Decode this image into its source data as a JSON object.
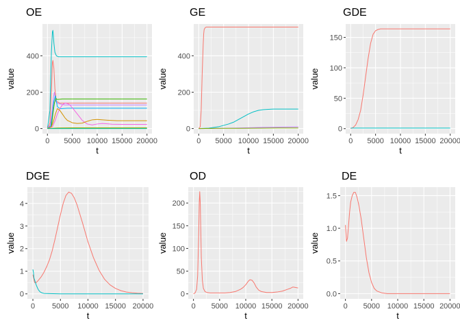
{
  "chart_data": [
    {
      "type": "line",
      "title": "OE",
      "xlabel": "t",
      "ylabel": "value",
      "xlim": [
        -1000,
        21000
      ],
      "ylim": [
        -28,
        575
      ],
      "xticks": [
        0,
        5000,
        10000,
        15000,
        20000
      ],
      "yticks": [
        0,
        200,
        400
      ],
      "xtick_labels": [
        "0",
        "5000",
        "10000",
        "15000",
        "20000"
      ],
      "ytick_labels": [
        "0",
        "200",
        "400"
      ],
      "series": [
        {
          "color": "#00BFC4",
          "x": [
            0,
            500,
            800,
            1000,
            1100,
            1200,
            1300,
            1500,
            1800,
            2200,
            3000,
            5000,
            20000
          ],
          "y": [
            0,
            100,
            420,
            530,
            540,
            510,
            470,
            420,
            400,
            395,
            395,
            395,
            395
          ]
        },
        {
          "color": "#F8766D",
          "x": [
            0,
            500,
            800,
            1000,
            1100,
            1300,
            1500,
            1800,
            2500,
            20000
          ],
          "y": [
            0,
            30,
            200,
            360,
            375,
            330,
            220,
            150,
            140,
            140
          ]
        },
        {
          "color": "#C77CFF",
          "x": [
            0,
            600,
            900,
            1200,
            1400,
            1700,
            2000,
            2500,
            3500,
            20000
          ],
          "y": [
            0,
            20,
            90,
            170,
            200,
            150,
            140,
            135,
            130,
            130
          ]
        },
        {
          "color": "#00B0F6",
          "x": [
            0,
            700,
            1000,
            1300,
            1600,
            2000,
            2500,
            3000,
            4000,
            5000,
            20000
          ],
          "y": [
            0,
            15,
            80,
            150,
            180,
            120,
            110,
            110,
            112,
            112,
            112
          ]
        },
        {
          "color": "#39B600",
          "x": [
            0,
            800,
            1100,
            1400,
            1700,
            2000,
            3000,
            20000
          ],
          "y": [
            0,
            10,
            80,
            140,
            165,
            160,
            163,
            163
          ]
        },
        {
          "color": "#F564E3",
          "x": [
            0,
            1000,
            1500,
            2000,
            2500,
            3000,
            3500,
            4000,
            4500,
            5000,
            6000,
            7000,
            8000,
            9000,
            10000,
            11000,
            12000,
            13000,
            15000,
            20000
          ],
          "y": [
            0,
            10,
            40,
            80,
            110,
            130,
            140,
            138,
            130,
            115,
            80,
            45,
            25,
            20,
            25,
            28,
            26,
            24,
            23,
            23
          ]
        },
        {
          "color": "#D39200",
          "x": [
            0,
            800,
            1200,
            1600,
            2000,
            2500,
            3000,
            3500,
            4000,
            5000,
            6000,
            7000,
            8000,
            9000,
            10000,
            12000,
            14000,
            16000,
            20000
          ],
          "y": [
            0,
            10,
            40,
            80,
            110,
            100,
            80,
            60,
            45,
            32,
            28,
            30,
            40,
            48,
            50,
            46,
            43,
            43,
            43
          ]
        },
        {
          "color": "#93AA00",
          "x": [
            0,
            2000,
            5000,
            20000
          ],
          "y": [
            0,
            3,
            4,
            4
          ]
        },
        {
          "color": "#00C19F",
          "x": [
            0,
            20000
          ],
          "y": [
            0,
            0
          ]
        }
      ]
    },
    {
      "type": "line",
      "title": "GE",
      "xlabel": "t",
      "ylabel": "value",
      "xlim": [
        -1000,
        21000
      ],
      "ylim": [
        -28,
        575
      ],
      "xticks": [
        0,
        5000,
        10000,
        15000,
        20000
      ],
      "yticks": [
        0,
        200,
        400
      ],
      "xtick_labels": [
        "0",
        "5000",
        "10000",
        "15000",
        "20000"
      ],
      "ytick_labels": [
        "0",
        "200",
        "400"
      ],
      "series": [
        {
          "color": "#F8766D",
          "x": [
            0,
            300,
            500,
            700,
            900,
            1000,
            1100,
            1300,
            1500,
            2000,
            20000
          ],
          "y": [
            0,
            10,
            100,
            300,
            460,
            520,
            545,
            555,
            558,
            558,
            558
          ]
        },
        {
          "color": "#00BFC4",
          "x": [
            0,
            2000,
            4000,
            6000,
            7000,
            8000,
            9000,
            10000,
            11000,
            12000,
            13000,
            14000,
            15000,
            16000,
            18000,
            20000
          ],
          "y": [
            0,
            2,
            10,
            25,
            35,
            50,
            65,
            80,
            92,
            100,
            104,
            106,
            107,
            107,
            107,
            107
          ]
        },
        {
          "color": "#C77CFF",
          "x": [
            0,
            4000,
            8000,
            12000,
            16000,
            20000
          ],
          "y": [
            0,
            1,
            3,
            6,
            8,
            9
          ]
        },
        {
          "color": "#7CAE00",
          "x": [
            0,
            4000,
            8000,
            12000,
            16000,
            20000
          ],
          "y": [
            0,
            1,
            1,
            2,
            3,
            3
          ]
        }
      ]
    },
    {
      "type": "line",
      "title": "GDE",
      "xlabel": "t",
      "ylabel": "value",
      "xlim": [
        -1000,
        21000
      ],
      "ylim": [
        -8.2,
        172
      ],
      "xticks": [
        0,
        5000,
        10000,
        15000,
        20000
      ],
      "yticks": [
        0,
        50,
        100,
        150
      ],
      "xtick_labels": [
        "0",
        "5000",
        "10000",
        "15000",
        "20000"
      ],
      "ytick_labels": [
        "0",
        "50",
        "100",
        "150"
      ],
      "series": [
        {
          "color": "#F8766D",
          "x": [
            0,
            500,
            1000,
            1500,
            2000,
            2500,
            3000,
            3500,
            4000,
            4500,
            5000,
            5500,
            6000,
            20000
          ],
          "y": [
            0,
            2,
            6,
            15,
            30,
            55,
            85,
            115,
            140,
            155,
            161,
            163,
            164,
            164
          ]
        },
        {
          "color": "#00BFC4",
          "x": [
            0,
            20000
          ],
          "y": [
            1,
            1
          ]
        }
      ]
    },
    {
      "type": "line",
      "title": "DGE",
      "xlabel": "t",
      "ylabel": "value",
      "xlim": [
        -1000,
        21000
      ],
      "ylim": [
        -0.22,
        4.72
      ],
      "xticks": [
        0,
        5000,
        10000,
        15000,
        20000
      ],
      "yticks": [
        0,
        1,
        2,
        3,
        4
      ],
      "xtick_labels": [
        "0",
        "5000",
        "10000",
        "15000",
        "20000"
      ],
      "ytick_labels": [
        "0",
        "1",
        "2",
        "3",
        "4"
      ],
      "series": [
        {
          "color": "#F8766D",
          "x": [
            0,
            300,
            600,
            1000,
            1500,
            2000,
            2500,
            3000,
            3500,
            4000,
            4500,
            5000,
            5500,
            6000,
            6500,
            7000,
            7500,
            8000,
            8500,
            9000,
            10000,
            11000,
            12000,
            13000,
            14000,
            15000,
            16000,
            17000,
            18000,
            19000,
            20000
          ],
          "y": [
            0.85,
            0.5,
            0.5,
            0.6,
            0.75,
            0.95,
            1.2,
            1.5,
            1.9,
            2.4,
            2.95,
            3.5,
            4.0,
            4.35,
            4.5,
            4.45,
            4.25,
            3.95,
            3.55,
            3.15,
            2.3,
            1.6,
            1.05,
            0.65,
            0.4,
            0.24,
            0.14,
            0.08,
            0.05,
            0.03,
            0.02
          ]
        },
        {
          "color": "#00BFC4",
          "x": [
            0,
            100,
            200,
            400,
            600,
            800,
            1000,
            1300,
            1600,
            2000,
            3000,
            5000,
            20000
          ],
          "y": [
            1.08,
            0.95,
            0.7,
            0.55,
            0.4,
            0.28,
            0.18,
            0.09,
            0.05,
            0.02,
            0.01,
            0,
            0
          ]
        }
      ]
    },
    {
      "type": "line",
      "title": "OD",
      "xlabel": "t",
      "ylabel": "value",
      "xlim": [
        -1000,
        21000
      ],
      "ylim": [
        -11,
        235
      ],
      "xticks": [
        0,
        5000,
        10000,
        15000,
        20000
      ],
      "yticks": [
        0,
        50,
        100,
        150,
        200
      ],
      "xtick_labels": [
        "0",
        "5000",
        "10000",
        "15000",
        "20000"
      ],
      "ytick_labels": [
        "0",
        "50",
        "100",
        "150",
        "200"
      ],
      "series": [
        {
          "color": "#F8766D",
          "x": [
            0,
            300,
            600,
            800,
            1000,
            1100,
            1200,
            1300,
            1400,
            1500,
            1700,
            1900,
            2200,
            2600,
            3200,
            4000,
            5000,
            6000,
            7000,
            8000,
            9000,
            9500,
            10000,
            10500,
            10800,
            11200,
            11600,
            12000,
            12500,
            13000,
            14000,
            15000,
            16000,
            17000,
            18000,
            18500,
            19000,
            19500,
            20000
          ],
          "y": [
            0,
            2,
            10,
            40,
            130,
            200,
            225,
            200,
            140,
            80,
            30,
            12,
            5,
            3,
            2,
            2,
            2,
            2,
            3,
            5,
            10,
            14,
            20,
            28,
            31,
            30,
            24,
            15,
            8,
            5,
            3,
            3,
            4,
            6,
            10,
            12,
            15,
            14,
            13
          ]
        }
      ]
    },
    {
      "type": "line",
      "title": "DE",
      "xlabel": "t",
      "ylabel": "value",
      "xlim": [
        -1000,
        21000
      ],
      "ylim": [
        -0.08,
        1.63
      ],
      "xticks": [
        0,
        5000,
        10000,
        15000,
        20000
      ],
      "yticks": [
        0.0,
        0.5,
        1.0,
        1.5
      ],
      "xtick_labels": [
        "0",
        "5000",
        "10000",
        "15000",
        "20000"
      ],
      "ytick_labels": [
        "0.0",
        "0.5",
        "1.0",
        "1.5"
      ],
      "series": [
        {
          "color": "#F8766D",
          "x": [
            0,
            200,
            400,
            600,
            800,
            1000,
            1300,
            1600,
            1900,
            2200,
            2500,
            3000,
            3500,
            4000,
            4500,
            5000,
            5500,
            6000,
            7000,
            8000,
            9000,
            10000,
            12000,
            15000,
            20000
          ],
          "y": [
            1.05,
            0.8,
            0.85,
            1.05,
            1.25,
            1.4,
            1.5,
            1.55,
            1.55,
            1.48,
            1.38,
            1.15,
            0.85,
            0.55,
            0.32,
            0.17,
            0.08,
            0.04,
            0.01,
            0,
            0,
            0,
            0,
            0,
            0
          ]
        }
      ]
    }
  ]
}
